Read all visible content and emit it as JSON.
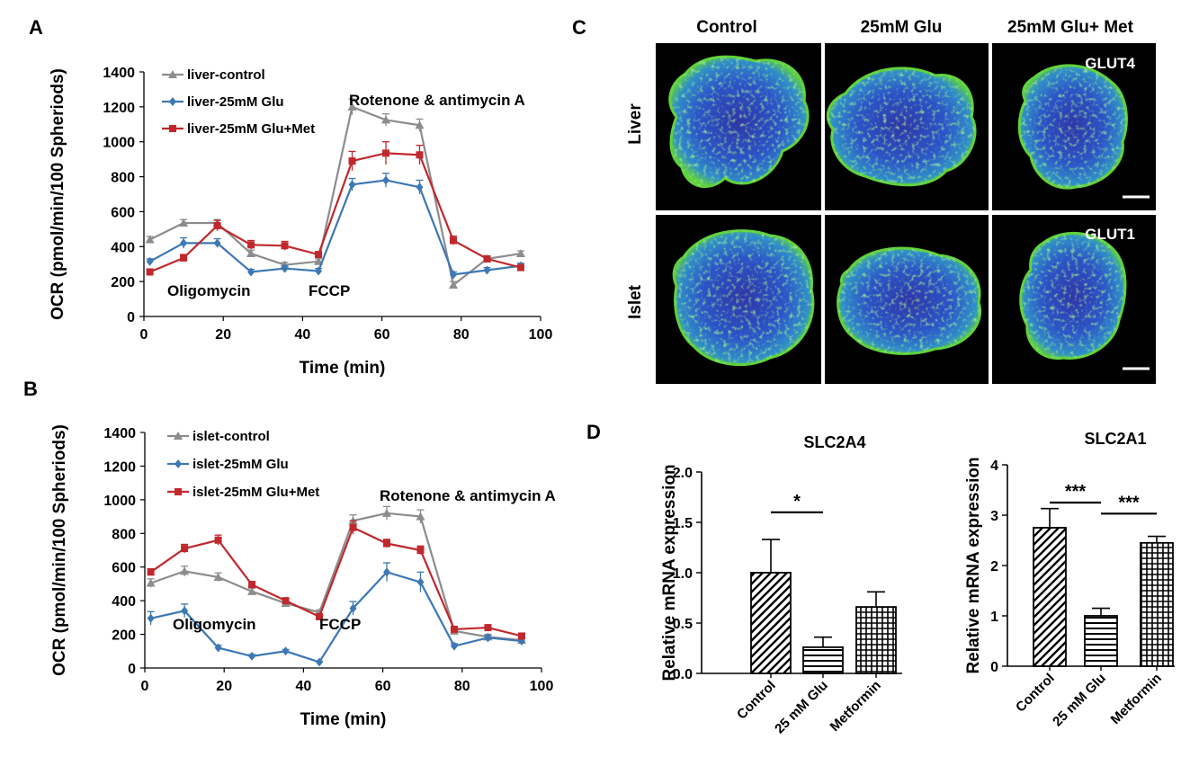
{
  "panel_labels": {
    "a": "A",
    "b": "B",
    "c": "C",
    "d": "D"
  },
  "chart_data": [
    {
      "id": "A",
      "type": "line",
      "xlabel": "Time (min)",
      "ylabel": "OCR (pmol/min/100 Spheriods)",
      "xlim": [
        0,
        100
      ],
      "ylim": [
        0,
        1400
      ],
      "xticks": [
        0,
        20,
        40,
        60,
        80,
        100
      ],
      "yticks": [
        0,
        200,
        400,
        600,
        800,
        1000,
        1200,
        1400
      ],
      "grid": false,
      "legend_position": "top-left",
      "x": [
        1.5,
        10,
        18.5,
        27,
        35.5,
        44,
        52.5,
        61,
        69.5,
        78,
        86.5,
        95
      ],
      "series": [
        {
          "name": "liver-control",
          "color": "#8c8c8c",
          "marker": "triangle",
          "values": [
            440,
            535,
            535,
            360,
            295,
            315,
            1200,
            1125,
            1095,
            180,
            330,
            360
          ],
          "errors": [
            18,
            20,
            20,
            20,
            15,
            15,
            45,
            35,
            35,
            20,
            15,
            15
          ]
        },
        {
          "name": "liver-25mM Glu",
          "color": "#3c78b4",
          "marker": "diamond",
          "values": [
            315,
            420,
            420,
            255,
            275,
            260,
            755,
            780,
            740,
            240,
            265,
            290
          ],
          "errors": [
            15,
            30,
            25,
            15,
            15,
            15,
            35,
            40,
            40,
            15,
            15,
            15
          ]
        },
        {
          "name": "liver-25mM Glu+Met",
          "color": "#c0282d",
          "marker": "square",
          "values": [
            255,
            335,
            520,
            410,
            405,
            355,
            890,
            935,
            925,
            435,
            330,
            280
          ],
          "errors": [
            15,
            20,
            30,
            25,
            25,
            15,
            55,
            65,
            55,
            25,
            15,
            15
          ]
        }
      ],
      "annotations": [
        "Oligomycin",
        "FCCP",
        "Rotenone & antimycin A"
      ]
    },
    {
      "id": "B",
      "type": "line",
      "xlabel": "Time (min)",
      "ylabel": "OCR (pmol/min/100 Spheriods)",
      "xlim": [
        0,
        100
      ],
      "ylim": [
        0,
        1400
      ],
      "xticks": [
        0,
        20,
        40,
        60,
        80,
        100
      ],
      "yticks": [
        0,
        200,
        400,
        600,
        800,
        1000,
        1200,
        1400
      ],
      "grid": false,
      "legend_position": "top-left",
      "x": [
        1.5,
        10,
        18.5,
        27,
        35.5,
        44,
        52.5,
        61,
        69.5,
        78,
        86.5,
        95
      ],
      "series": [
        {
          "name": "islet-control",
          "color": "#8c8c8c",
          "marker": "triangle",
          "values": [
            505,
            575,
            540,
            455,
            385,
            330,
            875,
            920,
            900,
            220,
            185,
            165
          ],
          "errors": [
            25,
            30,
            25,
            20,
            15,
            15,
            35,
            40,
            40,
            20,
            15,
            15
          ]
        },
        {
          "name": "islet-25mM Glu",
          "color": "#3c78b4",
          "marker": "diamond",
          "values": [
            295,
            340,
            120,
            70,
            100,
            35,
            355,
            570,
            510,
            130,
            180,
            160
          ],
          "errors": [
            40,
            40,
            15,
            10,
            10,
            5,
            40,
            55,
            60,
            15,
            15,
            15
          ]
        },
        {
          "name": "islet-25mM Glu+Met",
          "color": "#c0282d",
          "marker": "square",
          "values": [
            570,
            710,
            760,
            495,
            400,
            305,
            835,
            740,
            700,
            230,
            240,
            190
          ],
          "errors": [
            20,
            25,
            30,
            20,
            15,
            15,
            40,
            25,
            25,
            15,
            10,
            10
          ]
        }
      ],
      "annotations": [
        "Oligomycin",
        "FCCP",
        "Rotenone & antimycin A"
      ]
    },
    {
      "id": "D1",
      "type": "bar",
      "title": "SLC2A4",
      "ylabel": "Relative mRNA expression",
      "categories": [
        "Control",
        "25 mM Glu",
        "Metformin"
      ],
      "values": [
        1.0,
        0.26,
        0.66
      ],
      "errors": [
        0.33,
        0.1,
        0.15
      ],
      "patterns": [
        "diagonal",
        "horizontal",
        "grid"
      ],
      "ylim": [
        0,
        2.0
      ],
      "yticks": [
        "0.0",
        "0.5",
        "1.0",
        "1.5",
        "2.0"
      ],
      "significance": [
        {
          "from": 0,
          "to": 1,
          "label": "*"
        }
      ]
    },
    {
      "id": "D2",
      "type": "bar",
      "title": "SLC2A1",
      "ylabel": "Relative mRNA expression",
      "categories": [
        "Control",
        "25 mM Glu",
        "Metformin"
      ],
      "values": [
        2.75,
        1.0,
        2.45
      ],
      "errors": [
        0.38,
        0.15,
        0.13
      ],
      "patterns": [
        "diagonal",
        "horizontal",
        "grid"
      ],
      "ylim": [
        0,
        4
      ],
      "yticks": [
        "0",
        "1",
        "2",
        "3",
        "4"
      ],
      "significance": [
        {
          "from": 0,
          "to": 1,
          "label": "***"
        },
        {
          "from": 1,
          "to": 2,
          "label": "***"
        }
      ]
    }
  ],
  "micrographs": {
    "columns": [
      "Control",
      "25mM Glu",
      "25mM Glu+ Met"
    ],
    "rows": [
      {
        "label": "Liver",
        "marker": "GLUT4"
      },
      {
        "label": "Islet",
        "marker": "GLUT1"
      }
    ]
  },
  "colors": {
    "axis": "#000000",
    "micro_background": "#000000",
    "stain_blue": "#2a45c8",
    "stain_green": "#5fd23c"
  }
}
